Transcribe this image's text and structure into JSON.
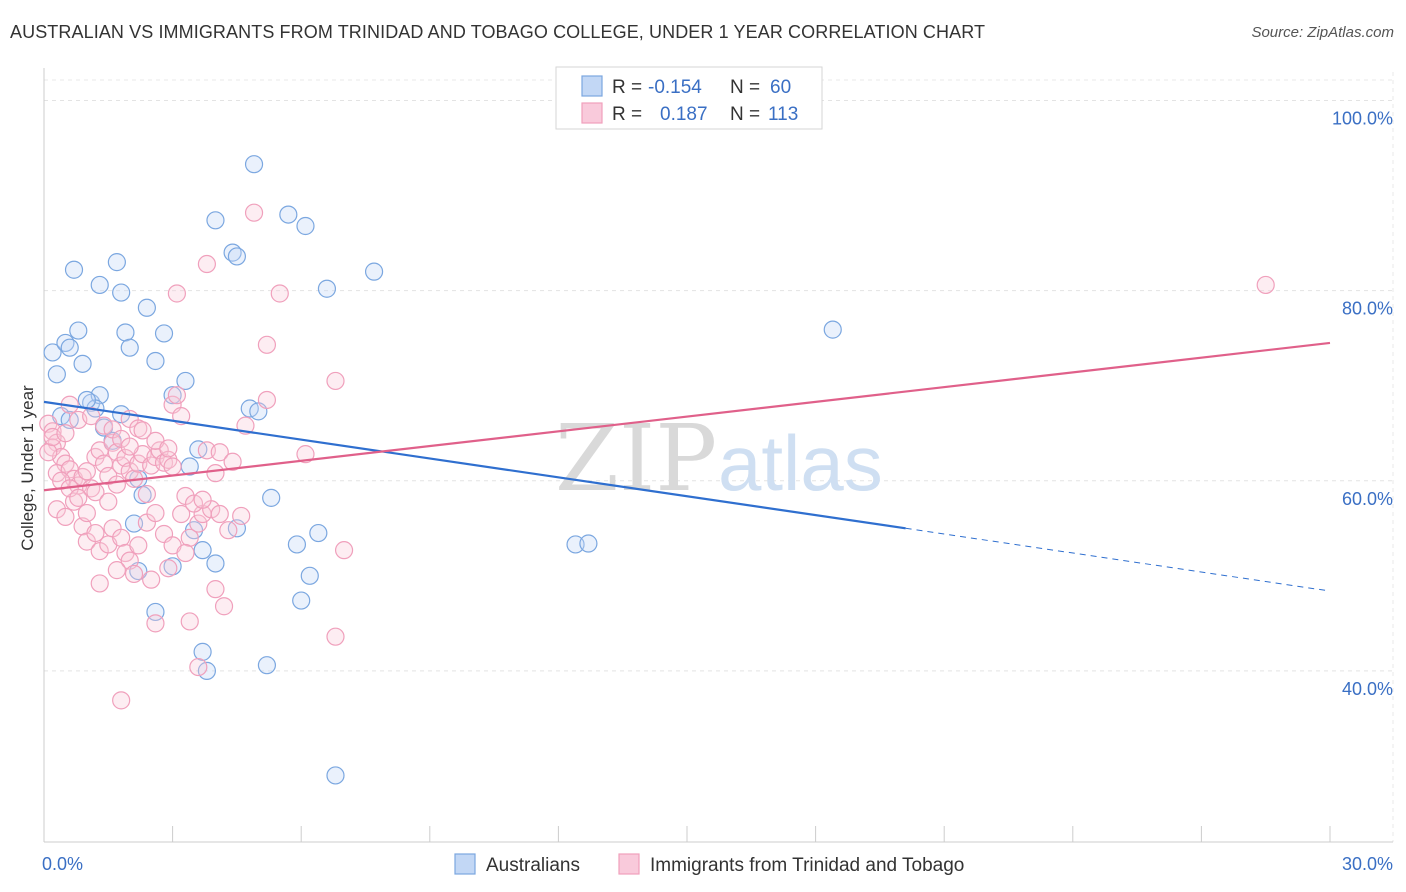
{
  "title": "AUSTRALIAN VS IMMIGRANTS FROM TRINIDAD AND TOBAGO COLLEGE, UNDER 1 YEAR CORRELATION CHART",
  "source": "Source: ZipAtlas.com",
  "watermark": {
    "zip": "ZIP",
    "atlas": "atlas"
  },
  "colors": {
    "blue": "#7ba7e0",
    "blue_line": "#2f6fcf",
    "pink": "#f0a0bc",
    "pink_line": "#e0608a",
    "blue_fill": "#c2d7f5",
    "pink_fill": "#f9cadb"
  },
  "legend": {
    "r_label": "R = ",
    "n_label": "N = ",
    "items": [
      {
        "r": "-0.154",
        "n": "60"
      },
      {
        "r": "0.187",
        "n": "113"
      }
    ]
  },
  "bottom_legend": [
    "Australians",
    "Immigrants from Trinidad and Tobago"
  ],
  "chart_data": {
    "type": "scatter",
    "ylabel": "College, Under 1 year",
    "xlim": [
      0,
      30
    ],
    "ylim": [
      22,
      103
    ],
    "x_tick_labels": [
      "0.0%",
      "30.0%"
    ],
    "y_ticks": [
      40,
      60,
      80,
      100
    ],
    "y_tick_labels": [
      "40.0%",
      "60.0%",
      "80.0%",
      "100.0%"
    ],
    "grid": true,
    "series": [
      {
        "name": "Australians",
        "trend": {
          "x0": 0,
          "y0": 68.3,
          "x1": 20.1,
          "y1": 55.0,
          "dash_to_x": 30,
          "dash_to_y": 48.4
        },
        "points": [
          [
            0.2,
            73.5
          ],
          [
            0.5,
            74.5
          ],
          [
            0.8,
            75.8
          ],
          [
            0.3,
            71.2
          ],
          [
            0.6,
            74.0
          ],
          [
            0.9,
            72.3
          ],
          [
            1.1,
            68.2
          ],
          [
            1.3,
            69.0
          ],
          [
            1.2,
            67.6
          ],
          [
            1.4,
            65.6
          ],
          [
            1.6,
            64.2
          ],
          [
            1.8,
            79.8
          ],
          [
            1.9,
            75.6
          ],
          [
            2.0,
            74.0
          ],
          [
            1.7,
            83.0
          ],
          [
            1.3,
            80.6
          ],
          [
            0.7,
            82.2
          ],
          [
            2.4,
            78.2
          ],
          [
            2.6,
            72.6
          ],
          [
            2.8,
            75.5
          ],
          [
            3.0,
            69.0
          ],
          [
            3.3,
            70.5
          ],
          [
            3.4,
            61.5
          ],
          [
            2.2,
            60.2
          ],
          [
            2.3,
            58.5
          ],
          [
            2.1,
            55.5
          ],
          [
            3.6,
            63.3
          ],
          [
            4.0,
            87.4
          ],
          [
            4.4,
            84.0
          ],
          [
            4.5,
            83.6
          ],
          [
            4.8,
            67.6
          ],
          [
            5.0,
            67.3
          ],
          [
            4.9,
            93.3
          ],
          [
            5.7,
            88.0
          ],
          [
            6.1,
            86.8
          ],
          [
            6.6,
            80.2
          ],
          [
            7.7,
            82.0
          ],
          [
            5.3,
            58.2
          ],
          [
            5.9,
            53.3
          ],
          [
            6.4,
            54.5
          ],
          [
            6.2,
            50.0
          ],
          [
            6.0,
            47.4
          ],
          [
            4.5,
            55.0
          ],
          [
            4.0,
            51.3
          ],
          [
            3.7,
            52.7
          ],
          [
            3.5,
            54.8
          ],
          [
            3.0,
            51.0
          ],
          [
            2.2,
            50.5
          ],
          [
            2.6,
            46.2
          ],
          [
            3.7,
            42.0
          ],
          [
            3.8,
            40.0
          ],
          [
            5.2,
            40.6
          ],
          [
            6.8,
            29.0
          ],
          [
            12.4,
            53.3
          ],
          [
            12.7,
            53.4
          ],
          [
            18.4,
            75.9
          ],
          [
            0.4,
            66.8
          ],
          [
            0.6,
            66.4
          ],
          [
            1.0,
            68.5
          ],
          [
            1.8,
            67.0
          ]
        ]
      },
      {
        "name": "Immigrants from Trinidad and Tobago",
        "trend": {
          "x0": 0,
          "y0": 59.0,
          "x1": 30,
          "y1": 74.5
        },
        "points": [
          [
            0.1,
            66.0
          ],
          [
            0.2,
            65.2
          ],
          [
            0.3,
            64.0
          ],
          [
            0.2,
            63.5
          ],
          [
            0.4,
            62.5
          ],
          [
            0.5,
            61.8
          ],
          [
            0.3,
            60.8
          ],
          [
            0.6,
            61.2
          ],
          [
            0.7,
            60.2
          ],
          [
            0.8,
            59.5
          ],
          [
            0.9,
            60.4
          ],
          [
            1.0,
            61.0
          ],
          [
            1.1,
            59.2
          ],
          [
            1.2,
            62.5
          ],
          [
            1.3,
            63.2
          ],
          [
            1.4,
            61.8
          ],
          [
            1.5,
            60.5
          ],
          [
            1.6,
            64.0
          ],
          [
            1.7,
            63.0
          ],
          [
            1.8,
            61.6
          ],
          [
            1.9,
            62.4
          ],
          [
            2.0,
            61.0
          ],
          [
            2.1,
            60.2
          ],
          [
            2.2,
            61.8
          ],
          [
            2.3,
            62.8
          ],
          [
            2.5,
            61.6
          ],
          [
            2.6,
            62.5
          ],
          [
            2.7,
            63.2
          ],
          [
            2.8,
            61.9
          ],
          [
            2.9,
            62.2
          ],
          [
            3.0,
            61.5
          ],
          [
            0.3,
            57.0
          ],
          [
            0.5,
            56.2
          ],
          [
            0.7,
            57.8
          ],
          [
            0.9,
            55.2
          ],
          [
            1.0,
            53.6
          ],
          [
            1.2,
            54.5
          ],
          [
            1.3,
            52.6
          ],
          [
            1.5,
            53.3
          ],
          [
            1.6,
            55.0
          ],
          [
            1.8,
            54.0
          ],
          [
            1.9,
            52.4
          ],
          [
            2.0,
            51.6
          ],
          [
            2.2,
            53.2
          ],
          [
            2.4,
            55.6
          ],
          [
            2.6,
            56.6
          ],
          [
            2.8,
            54.4
          ],
          [
            3.0,
            53.2
          ],
          [
            3.2,
            56.5
          ],
          [
            3.4,
            54.0
          ],
          [
            3.6,
            55.5
          ],
          [
            3.7,
            56.5
          ],
          [
            3.9,
            57.0
          ],
          [
            4.1,
            56.5
          ],
          [
            4.3,
            54.8
          ],
          [
            4.6,
            56.3
          ],
          [
            1.3,
            49.2
          ],
          [
            1.7,
            50.6
          ],
          [
            2.1,
            50.2
          ],
          [
            2.5,
            49.6
          ],
          [
            2.9,
            50.8
          ],
          [
            3.3,
            52.4
          ],
          [
            4.0,
            48.6
          ],
          [
            4.2,
            46.8
          ],
          [
            2.6,
            45.0
          ],
          [
            3.4,
            45.2
          ],
          [
            3.6,
            40.4
          ],
          [
            1.8,
            36.9
          ],
          [
            6.8,
            43.6
          ],
          [
            0.6,
            68.0
          ],
          [
            0.8,
            66.4
          ],
          [
            1.1,
            66.8
          ],
          [
            1.4,
            65.8
          ],
          [
            1.6,
            65.4
          ],
          [
            1.8,
            64.4
          ],
          [
            2.0,
            66.5
          ],
          [
            2.2,
            65.5
          ],
          [
            2.6,
            64.2
          ],
          [
            3.0,
            68.0
          ],
          [
            3.2,
            66.8
          ],
          [
            3.8,
            63.2
          ],
          [
            4.1,
            63.0
          ],
          [
            4.7,
            65.8
          ],
          [
            5.2,
            68.5
          ],
          [
            6.1,
            62.8
          ],
          [
            6.8,
            70.5
          ],
          [
            3.1,
            69.0
          ],
          [
            4.9,
            88.2
          ],
          [
            5.5,
            79.7
          ],
          [
            3.1,
            79.7
          ],
          [
            3.8,
            82.8
          ],
          [
            5.2,
            74.3
          ],
          [
            7.0,
            52.7
          ],
          [
            28.5,
            80.6
          ],
          [
            0.1,
            63.0
          ],
          [
            0.2,
            64.6
          ],
          [
            0.4,
            60.0
          ],
          [
            0.6,
            59.2
          ],
          [
            0.8,
            58.2
          ],
          [
            1.0,
            56.6
          ],
          [
            1.2,
            58.8
          ],
          [
            1.5,
            57.8
          ],
          [
            1.7,
            59.6
          ],
          [
            2.4,
            58.6
          ],
          [
            3.3,
            58.4
          ],
          [
            3.5,
            57.6
          ],
          [
            3.7,
            58.0
          ],
          [
            2.0,
            63.6
          ],
          [
            2.3,
            65.3
          ],
          [
            2.9,
            63.4
          ],
          [
            4.0,
            60.8
          ],
          [
            4.4,
            62.0
          ],
          [
            0.5,
            65.0
          ]
        ]
      }
    ]
  }
}
